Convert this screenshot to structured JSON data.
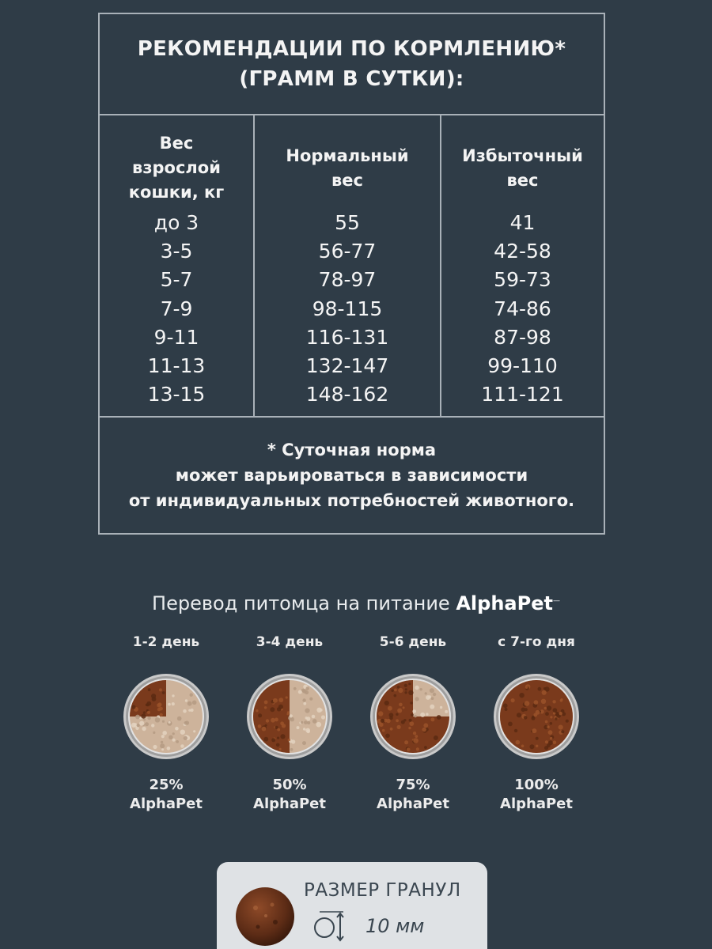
{
  "feeding": {
    "title_line1": "РЕКОМЕНДАЦИИ ПО КОРМЛЕНИЮ*",
    "title_line2": "(ГРАММ В СУТКИ):",
    "columns": [
      {
        "header": "Вес\nвзрослой\nкошки, кг",
        "values": [
          "до 3",
          "3-5",
          "5-7",
          "7-9",
          "9-11",
          "11-13",
          "13-15"
        ]
      },
      {
        "header": "Нормальный\nвес",
        "values": [
          "55",
          "56-77",
          "78-97",
          "98-115",
          "116-131",
          "132-147",
          "148-162"
        ]
      },
      {
        "header": "Избыточный\nвес",
        "values": [
          "41",
          "42-58",
          "59-73",
          "74-86",
          "87-98",
          "99-110",
          "111-121"
        ]
      }
    ],
    "note_line1": "* Суточная норма",
    "note_line2": "может варьироваться в зависимости",
    "note_line3": "от индивидуальных потребностей животного."
  },
  "transition": {
    "title": "Перевод питомца на питание",
    "brand": "AlphaPet",
    "steps": [
      {
        "day": "1-2 день",
        "percent": "25%",
        "brand": "AlphaPet",
        "fraction": 0.25
      },
      {
        "day": "3-4 день",
        "percent": "50%",
        "brand": "AlphaPet",
        "fraction": 0.5
      },
      {
        "day": "5-6 день",
        "percent": "75%",
        "brand": "AlphaPet",
        "fraction": 0.75
      },
      {
        "day": "с 7-го дня",
        "percent": "100%",
        "brand": "AlphaPet",
        "fraction": 1.0
      }
    ]
  },
  "granule": {
    "label": "РАЗМЕР ГРАНУЛ",
    "size": "10 мм",
    "icon": "granule-diameter-icon"
  },
  "colors": {
    "background": "#2f3c47",
    "border": "#a9b1b8",
    "brown_kibble": "#7a3a1c",
    "beige_kibble": "#cdb39b",
    "card": "#dfe2e5"
  }
}
